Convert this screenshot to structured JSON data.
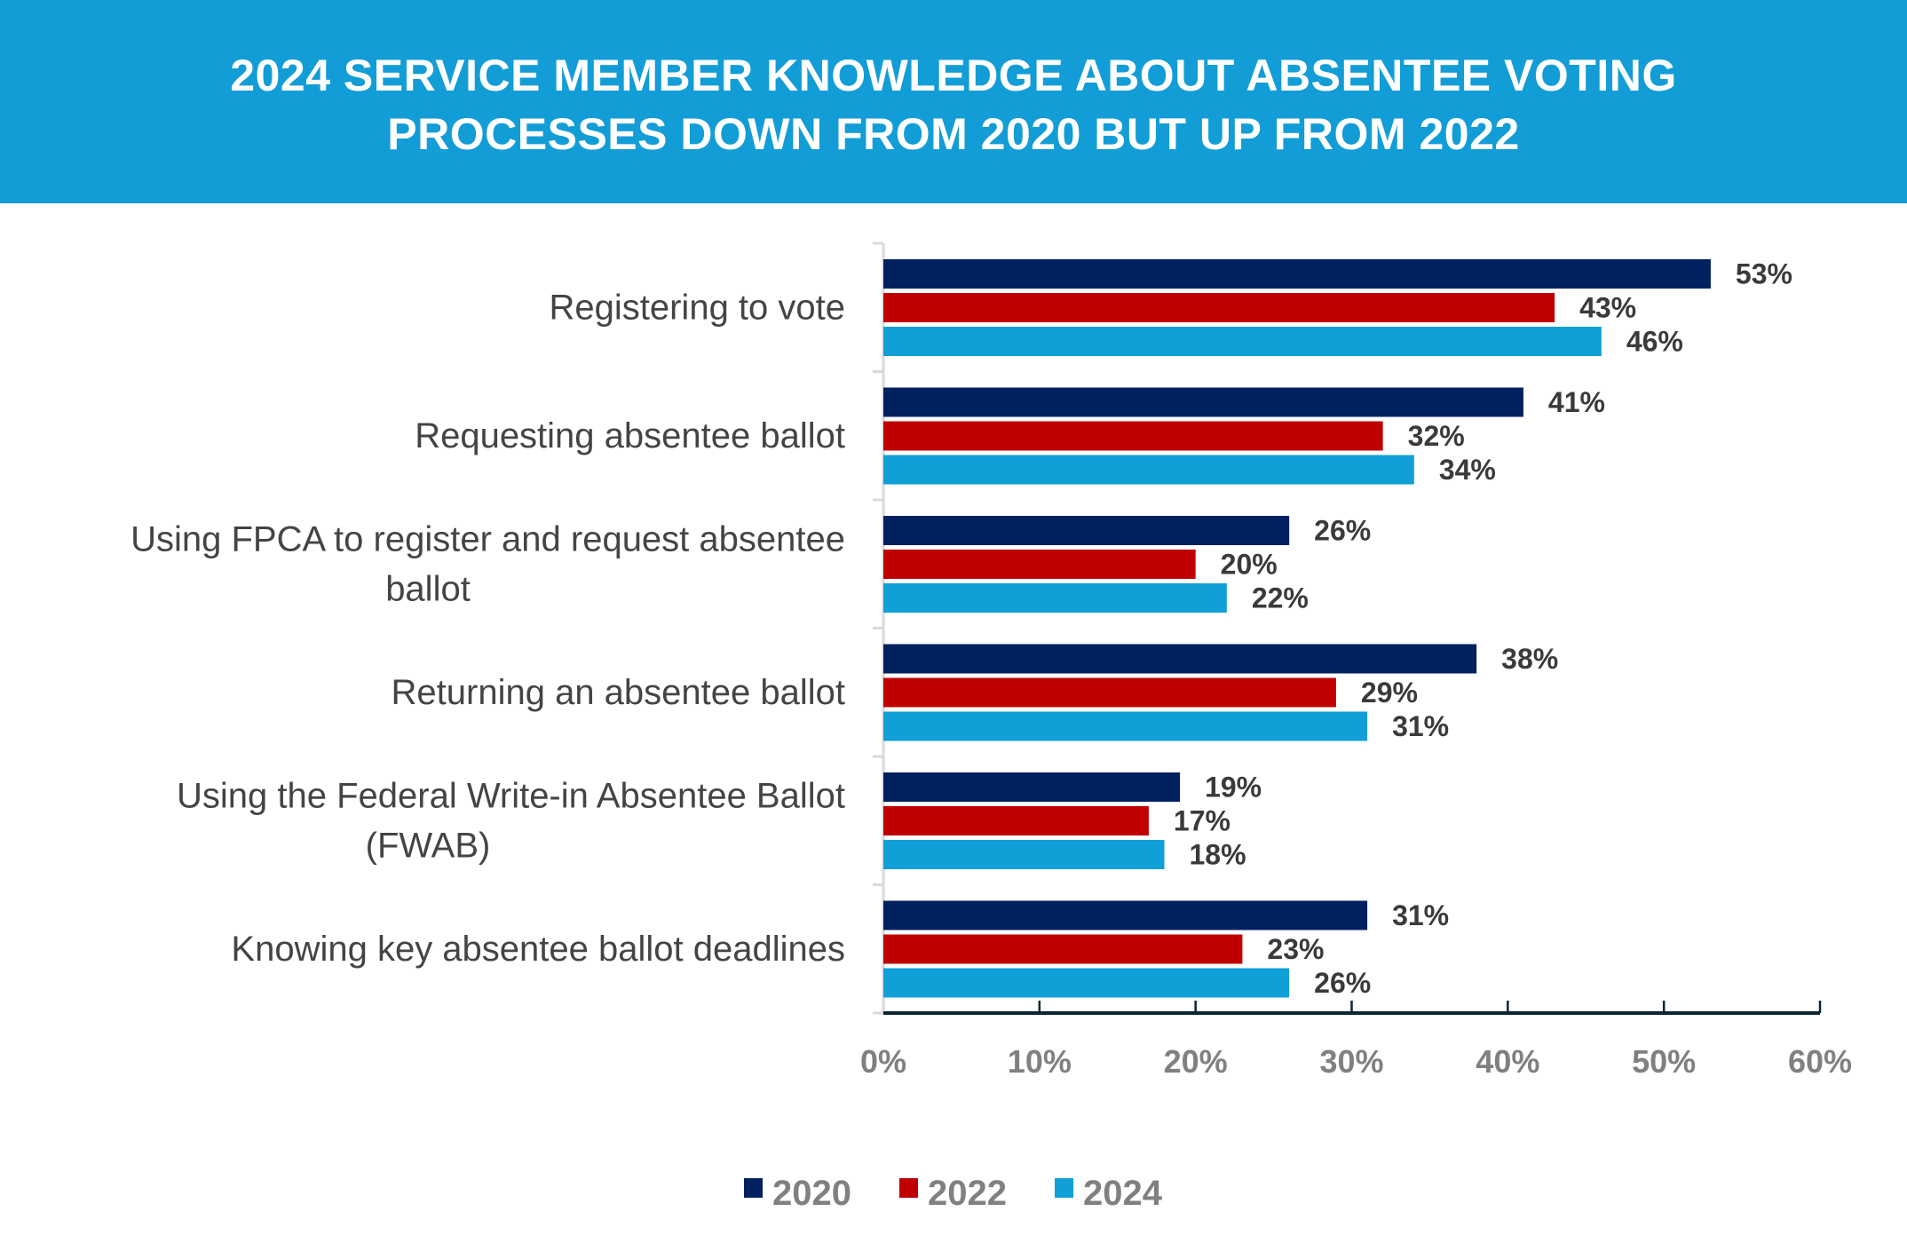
{
  "chart_data": {
    "type": "bar",
    "orientation": "horizontal",
    "title_lines": [
      "2024 SERVICE MEMBER KNOWLEDGE ABOUT ABSENTEE VOTING",
      "PROCESSES DOWN FROM 2020 BUT UP FROM 2022"
    ],
    "categories": [
      [
        "Registering to vote"
      ],
      [
        "Requesting absentee ballot"
      ],
      [
        "Using FPCA to register and request absentee",
        "ballot"
      ],
      [
        "Returning an absentee ballot"
      ],
      [
        "Using the Federal Write-in Absentee Ballot",
        "(FWAB)"
      ],
      [
        "Knowing key absentee ballot deadlines"
      ]
    ],
    "series": [
      {
        "name": "2020",
        "color": "#002060",
        "values": [
          53,
          41,
          26,
          38,
          19,
          31
        ]
      },
      {
        "name": "2022",
        "color": "#c00000",
        "values": [
          43,
          32,
          20,
          29,
          17,
          23
        ]
      },
      {
        "name": "2024",
        "color": "#109fd7",
        "values": [
          46,
          34,
          22,
          31,
          18,
          26
        ]
      }
    ],
    "value_format": "%",
    "xlim": [
      0,
      60
    ],
    "xticks": [
      "0%",
      "10%",
      "20%",
      "30%",
      "40%",
      "50%",
      "60%"
    ],
    "xlabel": "",
    "ylabel": "",
    "grid": false,
    "legend": "bottom",
    "header_color": "#129dd6"
  }
}
